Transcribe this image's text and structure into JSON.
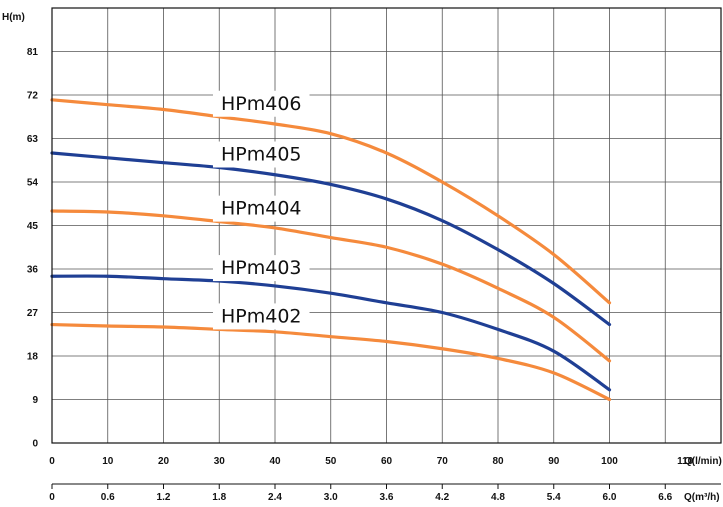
{
  "chart_data": {
    "type": "line",
    "ylabel": "H(m)",
    "xlabel_primary": "Q(l/min)",
    "xlabel_secondary": "Q(m³/h)",
    "ylim": [
      0,
      90
    ],
    "xlim": [
      0,
      120
    ],
    "y_ticks": [
      "0",
      "9",
      "18",
      "27",
      "36",
      "45",
      "54",
      "63",
      "72",
      "81"
    ],
    "x_ticks_primary": [
      "0",
      "10",
      "20",
      "30",
      "40",
      "50",
      "60",
      "70",
      "80",
      "90",
      "100",
      "110"
    ],
    "x_ticks_secondary": [
      "0",
      "0.6",
      "1.2",
      "1.8",
      "2.4",
      "3.0",
      "3.6",
      "4.2",
      "4.8",
      "5.4",
      "6.0",
      "6.6"
    ],
    "grid": true,
    "series": [
      {
        "name": "HPm406",
        "color": "#f58a3c",
        "x": [
          0,
          10,
          20,
          30,
          40,
          50,
          60,
          70,
          80,
          90,
          100
        ],
        "values": [
          71,
          70,
          69,
          67.5,
          66,
          64,
          60,
          54,
          47,
          39,
          29
        ]
      },
      {
        "name": "HPm405",
        "color": "#1f3f94",
        "x": [
          0,
          10,
          20,
          30,
          40,
          50,
          60,
          70,
          80,
          90,
          100
        ],
        "values": [
          60,
          59,
          58,
          57,
          55.5,
          53.5,
          50.5,
          46,
          40,
          33,
          24.5
        ]
      },
      {
        "name": "HPm404",
        "color": "#f58a3c",
        "x": [
          0,
          10,
          20,
          30,
          40,
          50,
          60,
          70,
          80,
          90,
          100
        ],
        "values": [
          48,
          47.8,
          47,
          45.8,
          44.5,
          42.5,
          40.5,
          37,
          32,
          26,
          17
        ]
      },
      {
        "name": "HPm403",
        "color": "#1f3f94",
        "x": [
          0,
          10,
          20,
          30,
          40,
          50,
          60,
          70,
          80,
          90,
          100
        ],
        "values": [
          34.5,
          34.5,
          34,
          33.5,
          32.5,
          31,
          29,
          27,
          23.5,
          19,
          11
        ]
      },
      {
        "name": "HPm402",
        "color": "#f58a3c",
        "x": [
          0,
          10,
          20,
          30,
          40,
          50,
          60,
          70,
          80,
          90,
          100
        ],
        "values": [
          24.5,
          24.2,
          24,
          23.5,
          23,
          22,
          21,
          19.5,
          17.5,
          14.5,
          9
        ]
      }
    ]
  }
}
